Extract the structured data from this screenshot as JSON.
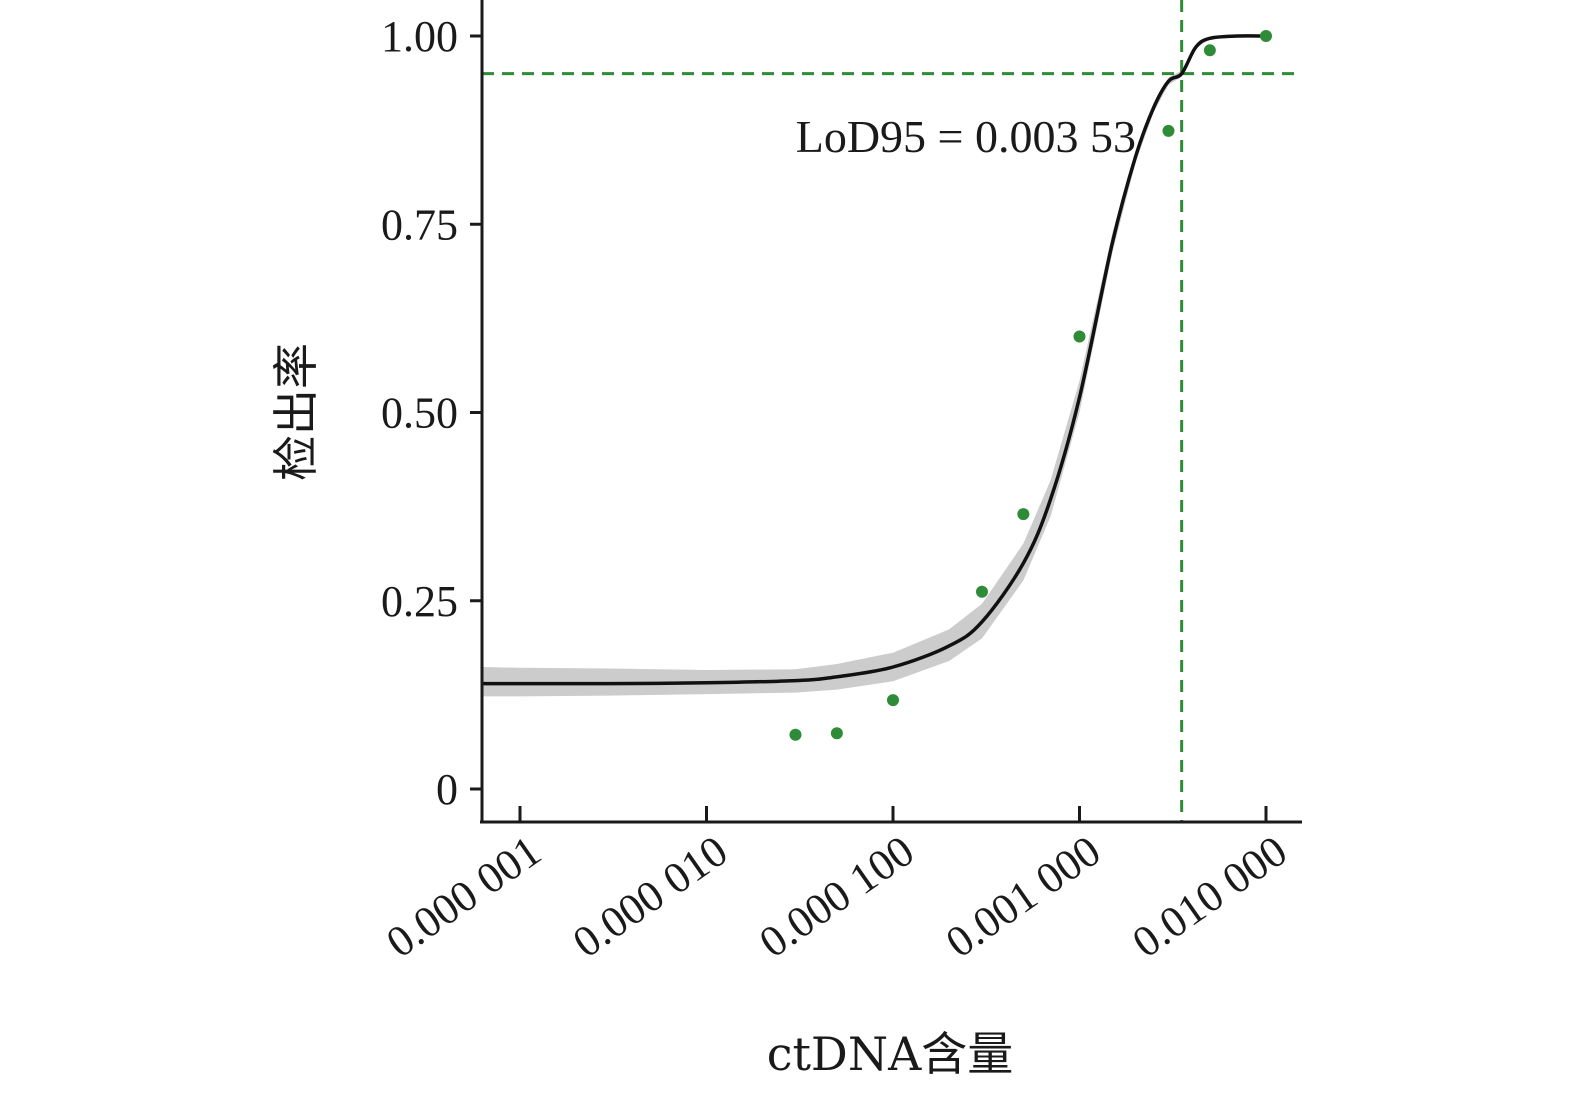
{
  "chart_data": {
    "type": "scatter",
    "x_scale": "log",
    "xlabel": "ctDNA含量",
    "ylabel": "检出率",
    "xlim": [
      5e-07,
      0.015
    ],
    "ylim": [
      -0.04,
      1.05
    ],
    "x_ticks": [
      {
        "value": 1e-06,
        "label": "0.000 001"
      },
      {
        "value": 1e-05,
        "label": "0.000 010"
      },
      {
        "value": 0.0001,
        "label": "0.000 100"
      },
      {
        "value": 0.001,
        "label": "0.001 000"
      },
      {
        "value": 0.01,
        "label": "0.010 000"
      }
    ],
    "y_ticks": [
      {
        "value": 0,
        "label": "0"
      },
      {
        "value": 0.25,
        "label": "0.25"
      },
      {
        "value": 0.5,
        "label": "0.50"
      },
      {
        "value": 0.75,
        "label": "0.75"
      },
      {
        "value": 1.0,
        "label": "1.00"
      }
    ],
    "grid": false,
    "points": [
      {
        "x": 3e-05,
        "y": 0.072
      },
      {
        "x": 5e-05,
        "y": 0.074
      },
      {
        "x": 0.0001,
        "y": 0.118
      },
      {
        "x": 0.0003,
        "y": 0.262
      },
      {
        "x": 0.0005,
        "y": 0.365
      },
      {
        "x": 0.001,
        "y": 0.601
      },
      {
        "x": 0.003,
        "y": 0.874
      },
      {
        "x": 0.005,
        "y": 0.981
      },
      {
        "x": 0.01,
        "y": 1.0
      }
    ],
    "fit_curve": {
      "color": "#111111",
      "band_color": "#cccccc",
      "points": [
        {
          "x": 5e-07,
          "y": 0.14,
          "lo": 0.123,
          "hi": 0.162
        },
        {
          "x": 1e-06,
          "y": 0.14,
          "lo": 0.123,
          "hi": 0.161
        },
        {
          "x": 3e-06,
          "y": 0.14,
          "lo": 0.124,
          "hi": 0.16
        },
        {
          "x": 1e-05,
          "y": 0.141,
          "lo": 0.126,
          "hi": 0.158
        },
        {
          "x": 3e-05,
          "y": 0.144,
          "lo": 0.128,
          "hi": 0.159
        },
        {
          "x": 5e-05,
          "y": 0.149,
          "lo": 0.132,
          "hi": 0.166
        },
        {
          "x": 0.0001,
          "y": 0.162,
          "lo": 0.143,
          "hi": 0.181
        },
        {
          "x": 0.0002,
          "y": 0.19,
          "lo": 0.17,
          "hi": 0.212
        },
        {
          "x": 0.0003,
          "y": 0.222,
          "lo": 0.2,
          "hi": 0.246
        },
        {
          "x": 0.0005,
          "y": 0.3,
          "lo": 0.277,
          "hi": 0.326
        },
        {
          "x": 0.0007,
          "y": 0.385,
          "lo": 0.362,
          "hi": 0.41
        },
        {
          "x": 0.001,
          "y": 0.52,
          "lo": 0.5,
          "hi": 0.542
        },
        {
          "x": 0.0015,
          "y": 0.725,
          "lo": 0.712,
          "hi": 0.738
        },
        {
          "x": 0.002,
          "y": 0.84,
          "lo": 0.832,
          "hi": 0.848
        },
        {
          "x": 0.0025,
          "y": 0.905,
          "lo": 0.899,
          "hi": 0.911
        },
        {
          "x": 0.003,
          "y": 0.94,
          "lo": 0.935,
          "hi": 0.945
        },
        {
          "x": 0.00353,
          "y": 0.95,
          "lo": 0.946,
          "hi": 0.954
        },
        {
          "x": 0.0042,
          "y": 0.985,
          "lo": 0.983,
          "hi": 0.987
        },
        {
          "x": 0.005,
          "y": 0.997,
          "lo": 0.996,
          "hi": 0.998
        },
        {
          "x": 0.007,
          "y": 1.0,
          "lo": 1.0,
          "hi": 1.0
        },
        {
          "x": 0.01,
          "y": 1.0,
          "lo": 1.0,
          "hi": 1.0
        }
      ]
    },
    "reference_lines": {
      "horizontal_y": 0.95,
      "vertical_x": 0.00353,
      "color": "#2e8b37"
    },
    "annotation": "LoD95 = 0.003 53",
    "point_color": "#2e8b37"
  }
}
